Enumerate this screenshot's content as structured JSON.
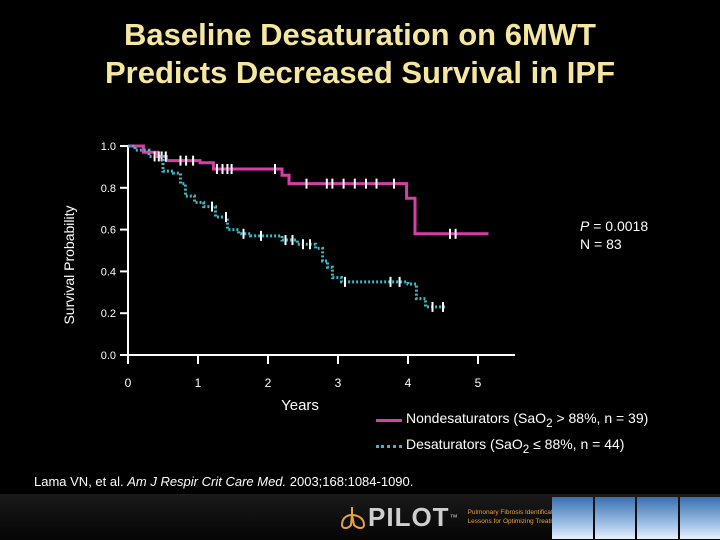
{
  "title_line1": "Baseline Desaturation on 6MWT",
  "title_line2": "Predicts Decreased Survival in IPF",
  "stats": {
    "p_prefix": "P",
    "p_value": " = 0.0018",
    "n": "N = 83"
  },
  "legend": [
    {
      "prefix": "Nondesaturators (SaO",
      "sub": "2",
      "suffix": " > 88%, n = 39)"
    },
    {
      "prefix": "Desaturators (SaO",
      "sub": "2",
      "suffix": " ≤ 88%, n = 44)"
    }
  ],
  "citation": {
    "authors": "Lama VN, et al. ",
    "journal": "Am J Respir Crit Care Med.",
    "rest": " 2003;168:1084-1090."
  },
  "footer": {
    "logo": "PILOT",
    "logo_tm": "™",
    "tagline_line1": "Pulmonary Fibrosis Identification:",
    "tagline_line2": "Lessons for Optimizing Treatment"
  },
  "chart_data": {
    "type": "line",
    "subtype": "kaplan-meier step",
    "xlabel": "Years",
    "ylabel": "Survival Probability",
    "xlim": [
      0,
      5.5
    ],
    "ylim": [
      0,
      1.0
    ],
    "x_ticks": [
      "0",
      "1",
      "2",
      "3",
      "4",
      "5"
    ],
    "y_ticks": [
      "0.0",
      "0.2",
      "0.4",
      "0.6",
      "0.8",
      "1.0"
    ],
    "grid": false,
    "series": [
      {
        "name": "Nondesaturators",
        "color": "#d63fa8",
        "style": "solid",
        "steps": [
          [
            0,
            1.0
          ],
          [
            0.22,
            0.97
          ],
          [
            0.42,
            0.95
          ],
          [
            0.55,
            0.93
          ],
          [
            1.03,
            0.92
          ],
          [
            1.22,
            0.89
          ],
          [
            2.2,
            0.86
          ],
          [
            2.3,
            0.82
          ],
          [
            3.98,
            0.75
          ],
          [
            4.1,
            0.58
          ],
          [
            5.15,
            0.58
          ]
        ],
        "censored": [
          0.48,
          0.54,
          0.75,
          0.83,
          0.93,
          1.27,
          1.35,
          1.42,
          1.48,
          2.1,
          2.55,
          2.84,
          2.92,
          3.08,
          3.24,
          3.4,
          3.55,
          3.8,
          4.6,
          4.68
        ]
      },
      {
        "name": "Desaturators",
        "color": "#3cb8c8",
        "style": "dotted",
        "steps": [
          [
            0,
            1.0
          ],
          [
            0.1,
            0.98
          ],
          [
            0.3,
            0.95
          ],
          [
            0.5,
            0.88
          ],
          [
            0.65,
            0.87
          ],
          [
            0.75,
            0.82
          ],
          [
            0.82,
            0.76
          ],
          [
            0.95,
            0.73
          ],
          [
            1.08,
            0.71
          ],
          [
            1.25,
            0.66
          ],
          [
            1.42,
            0.6
          ],
          [
            1.58,
            0.58
          ],
          [
            1.75,
            0.57
          ],
          [
            2.2,
            0.55
          ],
          [
            2.42,
            0.53
          ],
          [
            2.68,
            0.51
          ],
          [
            2.78,
            0.45
          ],
          [
            2.85,
            0.42
          ],
          [
            2.92,
            0.37
          ],
          [
            3.05,
            0.35
          ],
          [
            4.0,
            0.34
          ],
          [
            4.12,
            0.27
          ],
          [
            4.25,
            0.23
          ],
          [
            4.55,
            0.23
          ]
        ],
        "censored": [
          0.38,
          0.44,
          1.2,
          1.4,
          1.65,
          1.9,
          2.25,
          2.35,
          2.5,
          2.6,
          3.1,
          3.75,
          3.88,
          4.35,
          4.5
        ]
      }
    ],
    "annotation": "P = 0.0018, N = 83"
  }
}
